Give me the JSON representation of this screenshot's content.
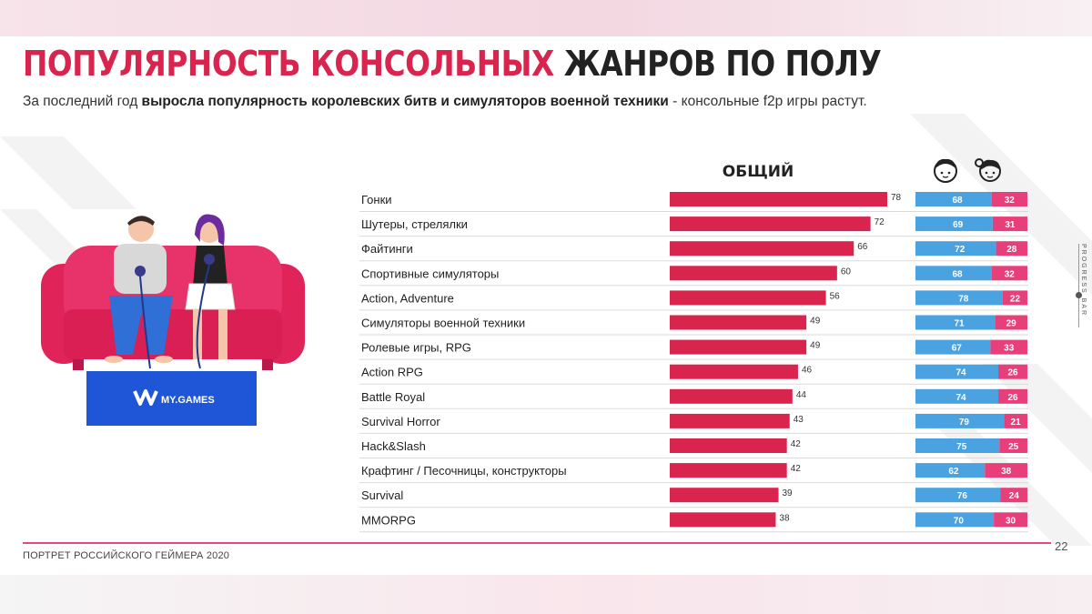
{
  "title_part1": "ПОПУЛЯРНОСТЬ КОНСОЛЬНЫХ",
  "title_part2": "ЖАНРОВ ПО ПОЛУ",
  "subtitle_pre": "За последний год ",
  "subtitle_bold": "выросла популярность королевских битв и симуляторов военной техники",
  "subtitle_post": " - консольные f2p игры растут.",
  "illustration": {
    "logo_text": "MY.GAMES"
  },
  "footer": "ПОРТРЕТ РОССИЙСКОГО ГЕЙМЕРА 2020",
  "page_number": "22",
  "progress": {
    "label": "PROGRESS BAR",
    "value": 0.62
  },
  "colors": {
    "red": "#d9254e",
    "blue": "#4aa3e0",
    "pink": "#e63f7a"
  },
  "icons": [
    "male-face-icon",
    "female-face-icon"
  ],
  "chart_data": {
    "type": "bar",
    "total_header": "ОБЩИЙ",
    "categories": [
      "Гонки",
      "Шутеры, стрелялки",
      "Файтинги",
      "Спортивные симуляторы",
      "Action, Adventure",
      "Симуляторы военной техники",
      "Ролевые игры, RPG",
      "Action RPG",
      "Battle Royal",
      "Survival Horror",
      "Hack&Slash",
      "Крафтинг / Песочницы, конструкторы",
      "Survival",
      "MMORPG"
    ],
    "total": [
      78,
      72,
      66,
      60,
      56,
      49,
      49,
      46,
      44,
      43,
      42,
      42,
      39,
      38
    ],
    "male": [
      68,
      69,
      72,
      68,
      78,
      71,
      67,
      74,
      74,
      79,
      75,
      62,
      76,
      70
    ],
    "female": [
      32,
      31,
      28,
      32,
      22,
      29,
      33,
      26,
      26,
      21,
      25,
      38,
      24,
      30
    ],
    "xlim": [
      0,
      100
    ]
  }
}
